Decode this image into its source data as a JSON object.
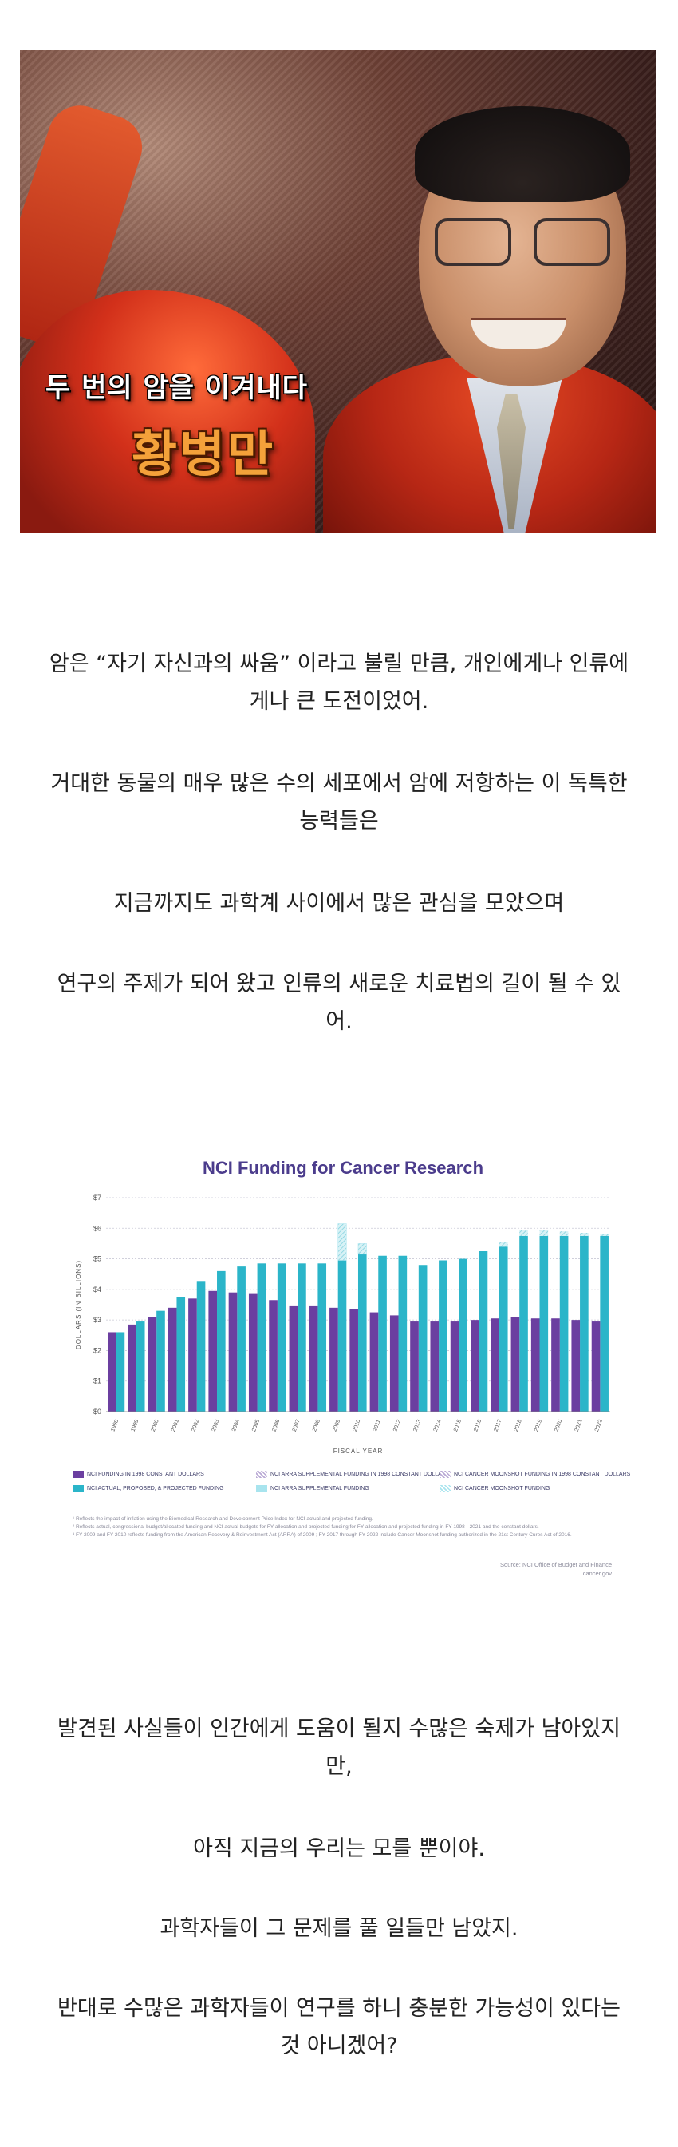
{
  "hero": {
    "caption_line1": "두 번의 암을 이겨내다",
    "caption_line2": "황병만"
  },
  "paragraphs_top": [
    {
      "lines": [
        "암은 “자기 자신과의 싸움” 이라고 불릴 만큼,  개인에게나 인류에",
        "게나 큰 도전이었어."
      ]
    },
    {
      "lines": [
        "거대한 동물의 매우 많은 수의 세포에서 암에 저항하는 이 독특한",
        "능력들은"
      ]
    },
    {
      "lines": [
        "지금까지도 과학계 사이에서 많은 관심을 모았으며"
      ]
    },
    {
      "lines": [
        "연구의 주제가 되어 왔고 인류의 새로운 치료법의 길이 될 수 있",
        "어."
      ]
    }
  ],
  "paragraphs_bottom": [
    {
      "lines": [
        "발견된 사실들이 인간에게 도움이 될지 수많은 숙제가 남아있지",
        "만,"
      ]
    },
    {
      "lines": [
        "아직 지금의 우리는 모를 뿐이야."
      ]
    },
    {
      "lines": [
        "과학자들이 그 문제를 풀 일들만 남았지."
      ]
    },
    {
      "lines": [
        "반대로 수많은 과학자들이 연구를 하니  충분한 가능성이 있다는",
        "것 아니겠어?"
      ]
    }
  ],
  "chart_data": {
    "type": "bar",
    "title": "NCI Funding for Cancer Research",
    "xlabel": "FISCAL YEAR",
    "ylabel": "DOLLARS (IN BILLIONS)",
    "ylim": [
      0,
      7
    ],
    "yticks": [
      "$0",
      "$1",
      "$2",
      "$3",
      "$4",
      "$5",
      "$6",
      "$7"
    ],
    "categories": [
      "1998",
      "1999",
      "2000",
      "2001",
      "2002",
      "2003",
      "2004",
      "2005",
      "2006",
      "2007",
      "2008",
      "2009",
      "2010",
      "2011",
      "2012",
      "2013",
      "2014",
      "2015",
      "2016",
      "2017",
      "2018",
      "2019",
      "2020",
      "2021",
      "2022"
    ],
    "series": [
      {
        "name": "NCI FUNDING IN 1998 CONSTANT DOLLARS",
        "color": "#6b3fa0",
        "values": [
          2.6,
          2.85,
          3.1,
          3.4,
          3.7,
          3.95,
          3.9,
          3.85,
          3.65,
          3.45,
          3.45,
          3.4,
          3.35,
          3.25,
          3.15,
          2.95,
          2.95,
          2.95,
          3.0,
          3.05,
          3.1,
          3.05,
          3.05,
          3.0,
          2.95
        ]
      },
      {
        "name": "NCI ACTUAL, PROPOSED, & PROJECTED FUNDING",
        "color": "#2bb5c9",
        "values": [
          2.6,
          2.95,
          3.3,
          3.75,
          4.25,
          4.6,
          4.75,
          4.85,
          4.85,
          4.85,
          4.85,
          4.95,
          5.15,
          5.1,
          5.1,
          4.8,
          4.95,
          5.0,
          5.25,
          5.4,
          5.75,
          5.75,
          5.75,
          5.75,
          5.75
        ]
      },
      {
        "name": "NCI ARRA SUPPLEMENTAL FUNDING",
        "color": "#a8e4ee",
        "values": [
          0,
          0,
          0,
          0,
          0,
          0,
          0,
          0,
          0,
          0,
          0,
          1.2,
          0.35,
          0,
          0,
          0,
          0,
          0,
          0,
          0,
          0,
          0,
          0,
          0,
          0
        ]
      },
      {
        "name": "NCI CANCER MOONSHOT FUNDING IN 1998 CONSTANT DOLLARS",
        "color": "#cccccc",
        "values": [
          0,
          0,
          0,
          0,
          0,
          0,
          0,
          0,
          0,
          0,
          0,
          0,
          0,
          0,
          0,
          0,
          0,
          0,
          0,
          0.15,
          0.2,
          0.2,
          0.15,
          0.1,
          0.05
        ]
      }
    ],
    "legend": [
      {
        "label": "NCI FUNDING IN 1998 CONSTANT DOLLARS",
        "color": "#6b3fa0",
        "pattern": "solid"
      },
      {
        "label": "NCI ARRA SUPPLEMENTAL FUNDING IN 1998 CONSTANT DOLLARS",
        "color": "#b9a8d4",
        "pattern": "hatch"
      },
      {
        "label": "NCI CANCER MOONSHOT FUNDING IN 1998 CONSTANT DOLLARS",
        "color": "#b9a8d4",
        "pattern": "hatch"
      },
      {
        "label": "NCI ACTUAL, PROPOSED, & PROJECTED FUNDING",
        "color": "#2bb5c9",
        "pattern": "solid"
      },
      {
        "label": "NCI ARRA SUPPLEMENTAL FUNDING",
        "color": "#a8e4ee",
        "pattern": "solid"
      },
      {
        "label": "NCI CANCER MOONSHOT FUNDING",
        "color": "#a8e4ee",
        "pattern": "hatch"
      }
    ],
    "notes": [
      "¹ Reflects the impact of inflation using the Biomedical Research and Development Price Index for NCI actual and projected funding.",
      "² Reflects actual, congressional budget/allocated funding and NCI actual budgets for FY allocation and projected funding for FY allocation and projected funding in FY 1998 - 2021 and the constant dollars.",
      "³ FY 2009 and FY 2010 reflects funding from the American Recovery & Reinvestment Act (ARRA) of 2009 ; FY 2017 through FY 2022 include Cancer Moonshot funding authorized in the 21st Century Cures Act of 2016."
    ],
    "source_lines": [
      "Source: NCI Office of Budget and Finance",
      "cancer.gov"
    ]
  }
}
